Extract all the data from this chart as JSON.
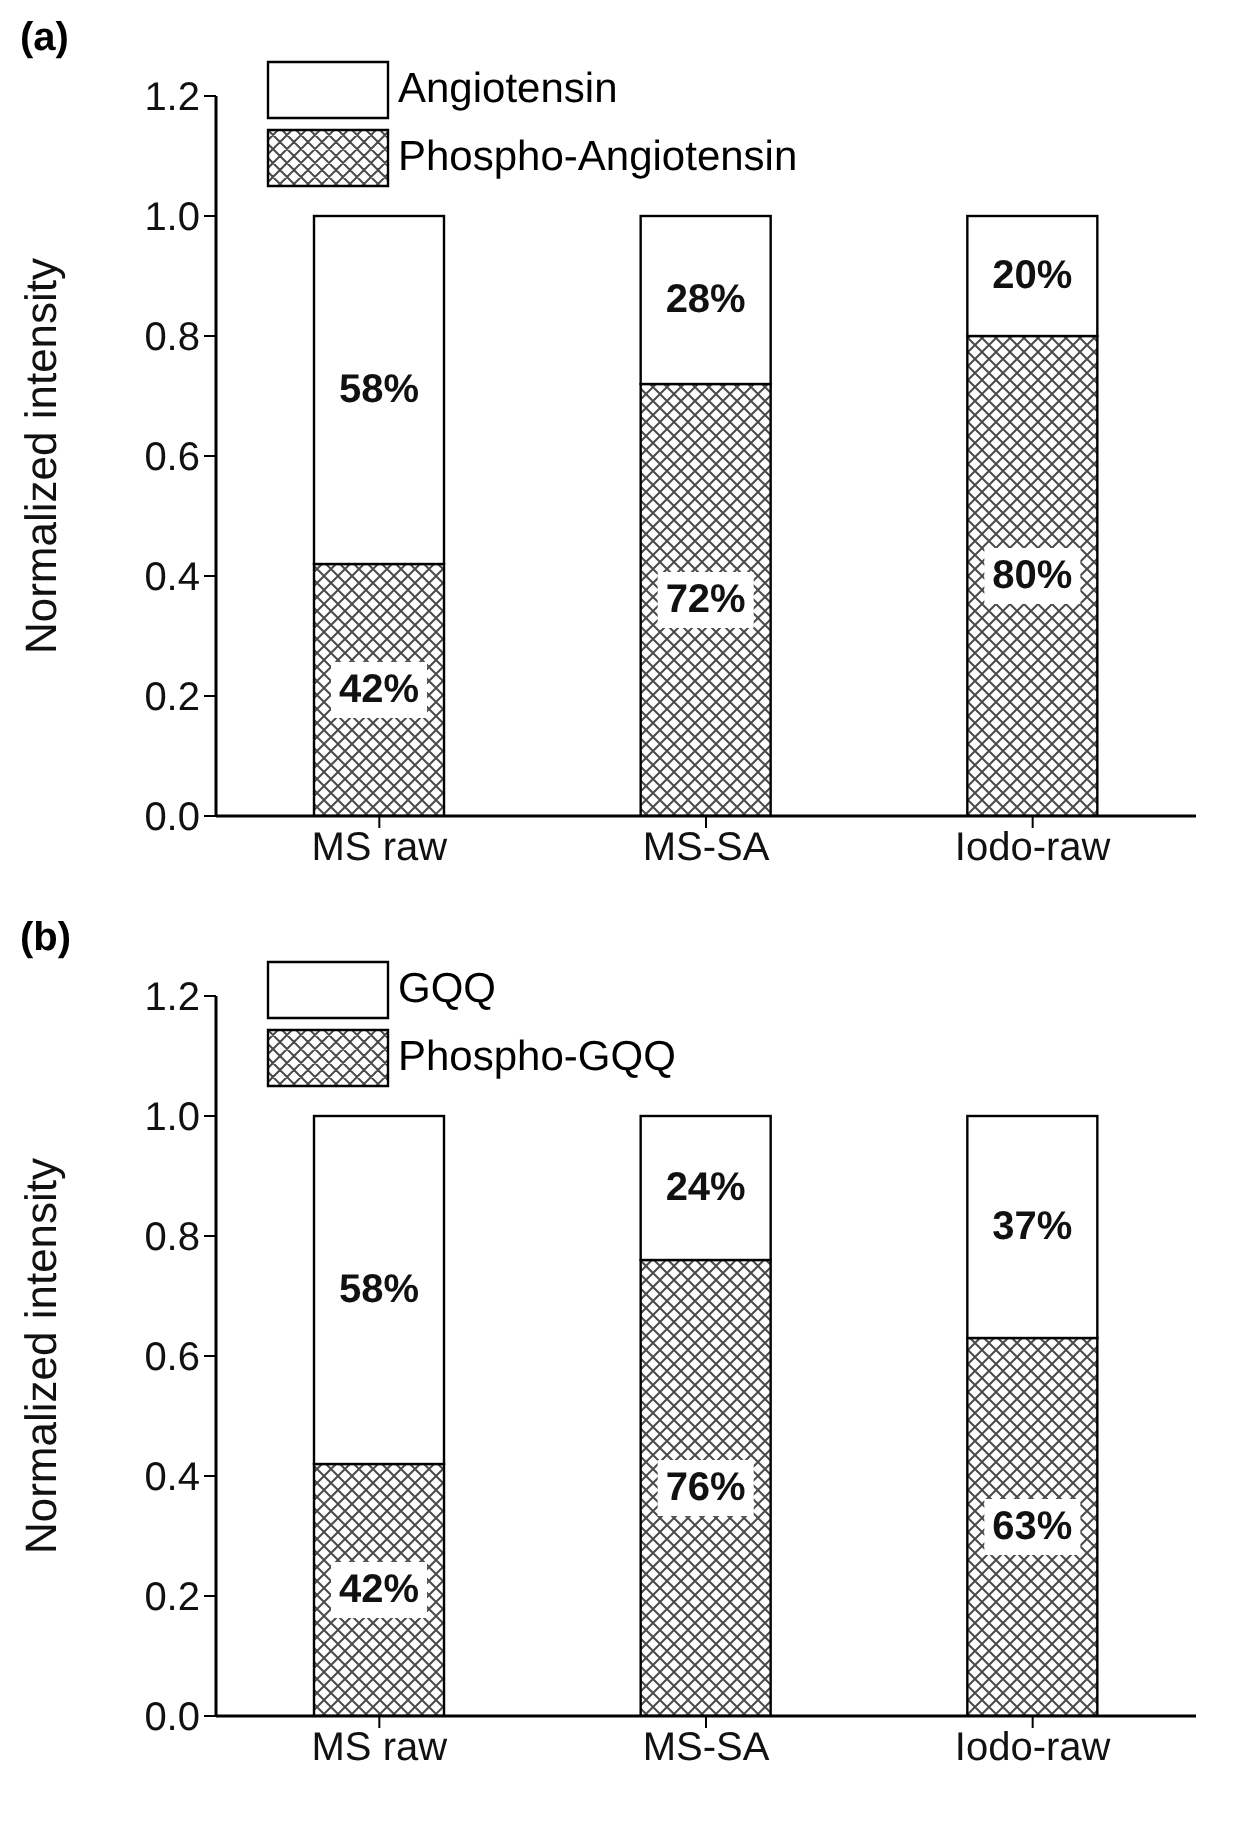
{
  "chart_data": [
    {
      "type": "bar",
      "title": "(a)",
      "ylabel": "Normalized intensity",
      "categories": [
        "MS raw",
        "MS-SA",
        "Iodo-raw"
      ],
      "stacked": true,
      "legend": "top left",
      "ylim": [
        0,
        1.2
      ],
      "yticks": [
        {
          "value": 0,
          "label": "0.0"
        },
        {
          "value": 0.2,
          "label": "0.2"
        },
        {
          "value": 0.4,
          "label": "0.4"
        },
        {
          "value": 0.6,
          "label": "0.6"
        },
        {
          "value": 0.8,
          "label": "0.8"
        },
        {
          "value": 1,
          "label": "1.0"
        },
        {
          "value": 1.2,
          "label": "1.2"
        }
      ],
      "series": [
        {
          "name": "Phospho-Angiotensin",
          "color": "#4a4a4a",
          "values": [
            0.42,
            0.72,
            0.8
          ],
          "value_labels": [
            "42%",
            "72%",
            "80%"
          ]
        },
        {
          "name": "Angiotensin",
          "color": "#ffffff",
          "values": [
            0.58,
            0.28,
            0.2
          ],
          "value_labels": [
            "58%",
            "28%",
            "20%"
          ]
        }
      ]
    },
    {
      "type": "bar",
      "title": "(b)",
      "ylabel": "Normalized intensity",
      "categories": [
        "MS raw",
        "MS-SA",
        "Iodo-raw"
      ],
      "stacked": true,
      "legend": "top left",
      "ylim": [
        0,
        1.2
      ],
      "yticks": [
        {
          "value": 0,
          "label": "0.0"
        },
        {
          "value": 0.2,
          "label": "0.2"
        },
        {
          "value": 0.4,
          "label": "0.4"
        },
        {
          "value": 0.6,
          "label": "0.6"
        },
        {
          "value": 0.8,
          "label": "0.8"
        },
        {
          "value": 1,
          "label": "1.0"
        },
        {
          "value": 1.2,
          "label": "1.2"
        }
      ],
      "series": [
        {
          "name": "Phospho-GQQ",
          "color": "#4a4a4a",
          "values": [
            0.42,
            0.76,
            0.63
          ],
          "value_labels": [
            "42%",
            "76%",
            "63%"
          ]
        },
        {
          "name": "GQQ",
          "color": "#ffffff",
          "values": [
            0.58,
            0.24,
            0.37
          ],
          "value_labels": [
            "58%",
            "24%",
            "37%"
          ]
        }
      ]
    }
  ]
}
